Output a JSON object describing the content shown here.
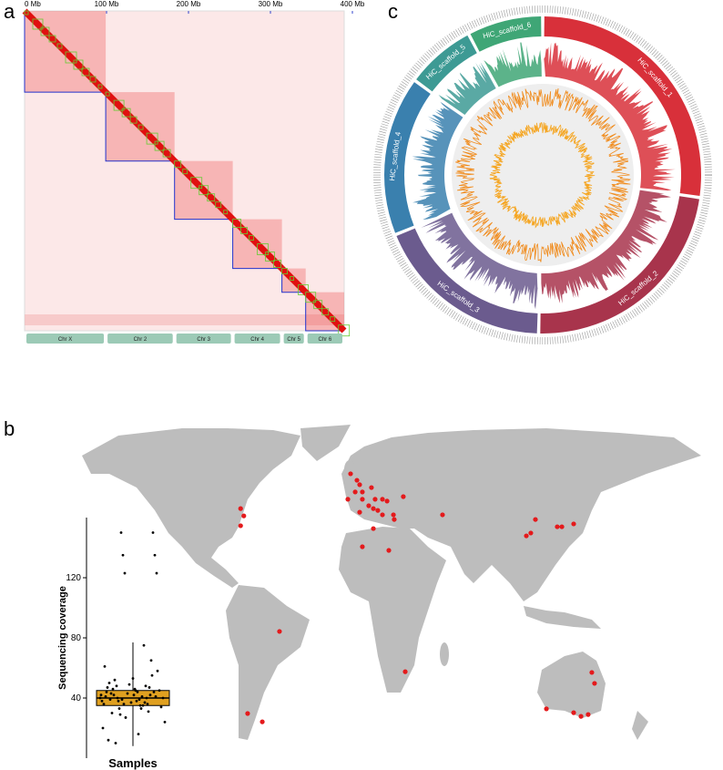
{
  "panel_labels": [
    "a",
    "b",
    "c"
  ],
  "chart_data": [
    {
      "type": "heatmap",
      "xlim": [
        0,
        390
      ],
      "xticks": [
        {
          "value": 0,
          "label": "0 Mb"
        },
        {
          "value": 100,
          "label": "100 Mb"
        },
        {
          "value": 200,
          "label": "200 Mb"
        },
        {
          "value": 300,
          "label": "300 Mb"
        },
        {
          "value": 400,
          "label": "400 Mb"
        }
      ],
      "categories": [
        "Chr X",
        "Chr 2",
        "Chr 3",
        "Chr 4",
        "Chr 5",
        "Chr 6"
      ],
      "starts": [
        0,
        99,
        183,
        254,
        314,
        343
      ],
      "ends": [
        99,
        183,
        254,
        314,
        343,
        390
      ]
    },
    {
      "type": "circos",
      "categories": [
        "HiC_scaffold_1",
        "HiC_scaffold_2",
        "HiC_scaffold_3",
        "HiC_scaffold_4",
        "HiC_scaffold_5",
        "HiC_scaffold_6"
      ],
      "values": [
        99,
        84,
        67,
        59,
        26,
        28
      ],
      "colors": [
        "#d8303a",
        "#a8344c",
        "#6b5b8e",
        "#3a80ae",
        "#3d9a94",
        "#3fa676"
      ]
    },
    {
      "type": "map",
      "color": "#e41a1c",
      "lon": [
        -73,
        -71,
        -73,
        -4.0,
        0,
        1.7,
        -1.1,
        3.4,
        9.1,
        -5.7,
        3.4,
        11.4,
        16.0,
        18.9,
        7.4,
        10.3,
        1.7,
        13.1,
        16.0,
        22.9,
        29.1,
        23.4,
        53.7,
        10.3,
        3.4,
        20.0,
        106.3,
        109.1,
        112.0,
        125.7,
        128.6,
        136.0,
        -48.6,
        -68.6,
        -59.4,
        30.3,
        147.4,
        149.1,
        118.9,
        136.0,
        140.6,
        145.1
      ],
      "lat": [
        37.5,
        34.7,
        30.9,
        50.9,
        48.4,
        46.7,
        43.9,
        43.9,
        45.6,
        41.1,
        41.1,
        41.1,
        41.1,
        40.4,
        38.6,
        37.5,
        36.1,
        36.8,
        35.1,
        35.1,
        42.1,
        33.3,
        35.1,
        29.8,
        22.8,
        21.4,
        27.0,
        28.1,
        33.3,
        30.5,
        30.5,
        31.6,
        -9.8,
        -41.4,
        -44.6,
        -25.3,
        -25.6,
        -29.8,
        -39.6,
        -41.1,
        -42.5,
        -41.8
      ]
    },
    {
      "type": "box",
      "xlabel": "Samples",
      "ylabel": "Sequencing coverage",
      "ylim": [
        0,
        160
      ],
      "yticks": [
        40,
        80,
        120
      ],
      "color": "#e0a020",
      "box": {
        "whisker_low": 8,
        "q1": 35,
        "median": 40,
        "q3": 45,
        "whisker_high": 77
      },
      "values": [
        40,
        42,
        38,
        45,
        36,
        44,
        41,
        39,
        47,
        33,
        50,
        35,
        43,
        37,
        46,
        40,
        52,
        31,
        48,
        42,
        38,
        55,
        29,
        44,
        39,
        41,
        36,
        58,
        27,
        45,
        43,
        34,
        49,
        40,
        37,
        24,
        53,
        42,
        46,
        20,
        38,
        61,
        16,
        44,
        35,
        12,
        41,
        39,
        75,
        30,
        48,
        42,
        36,
        10,
        47,
        40,
        65,
        33,
        150,
        150,
        135,
        135,
        123,
        123
      ]
    }
  ]
}
